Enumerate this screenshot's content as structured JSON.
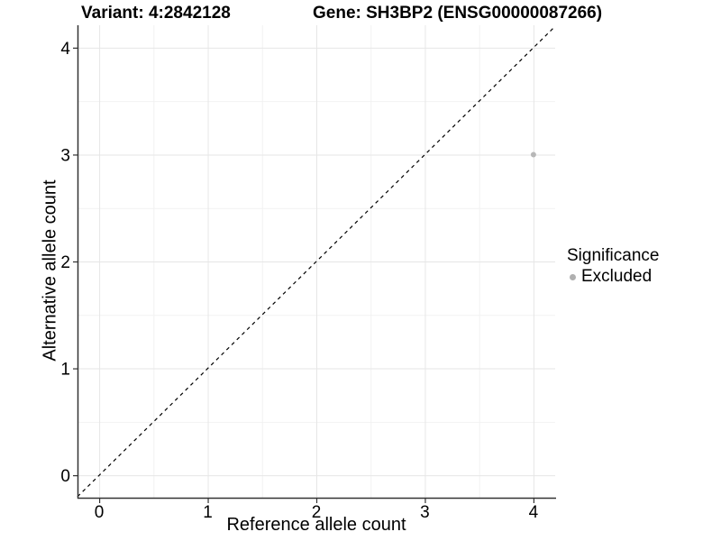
{
  "header": {
    "variant_title": "Variant: 4:2842128",
    "gene_title": "Gene: SH3BP2 (ENSG00000087266)"
  },
  "chart_data": {
    "type": "scatter",
    "title": "Variant: 4:2842128   Gene: SH3BP2 (ENSG00000087266)",
    "xlabel": "Reference allele count",
    "ylabel": "Alternative allele count",
    "xlim": [
      -0.2,
      4.2
    ],
    "ylim": [
      -0.21,
      4.21
    ],
    "x_ticks": [
      0,
      1,
      2,
      3,
      4
    ],
    "y_ticks": [
      0,
      1,
      2,
      3,
      4
    ],
    "x_minor_ticks": [
      0.5,
      1.5,
      2.5,
      3.5
    ],
    "y_minor_ticks": [
      0.5,
      1.5,
      2.5,
      3.5
    ],
    "grid": "on",
    "identity_line": {
      "type": "dashed",
      "slope": 1,
      "intercept": 0,
      "color": "#000000"
    },
    "series": [
      {
        "name": "Excluded",
        "points": [
          {
            "x": 4,
            "y": 3
          }
        ],
        "color": "#b7b7b7",
        "point_radius": 3
      }
    ],
    "legend": {
      "position": "right",
      "title": "Significance",
      "items": [
        {
          "label": "Excluded",
          "color": "#b0b0b0"
        }
      ]
    },
    "colors": {
      "background": "#ffffff",
      "major_grid": "#e6e6e6",
      "minor_grid": "#f2f2f2",
      "axis_line": "#333333",
      "tick": "#333333",
      "text": "#000000"
    }
  }
}
